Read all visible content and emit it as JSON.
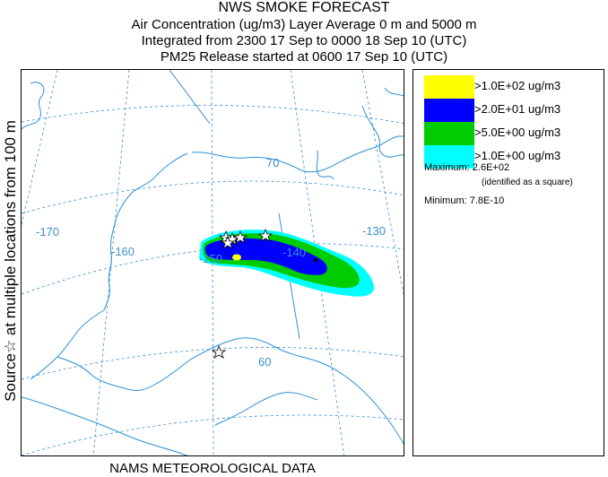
{
  "title": {
    "line1": "NWS SMOKE FORECAST",
    "line2": "Air Concentration (ug/m3) Layer Average    0 m and  5000 m",
    "line3": "Integrated from 2300 17 Sep to 0000 18 Sep 10 (UTC)",
    "line4": "PM25 Release started at 0600 17 Sep 10 (UTC)"
  },
  "side_label": "Source☆  at multiple locations    from   100 m",
  "footer": "NAMS METEOROLOGICAL DATA",
  "grid_labels": {
    "lon_170": "-170",
    "lon_160": "-160",
    "lon_150": "-150",
    "lon_140": "-140",
    "lon_130": "-130",
    "lat_70": "70",
    "lat_60": "60"
  },
  "legend": {
    "items": [
      {
        "label": ">1.0E+02 ug/m3",
        "color": "#ffff00"
      },
      {
        "label": ">2.0E+01 ug/m3",
        "color": "#0000ff"
      },
      {
        "label": ">5.0E+00 ug/m3",
        "color": "#00cc00"
      },
      {
        "label": ">1.0E+00 ug/m3",
        "color": "#00ffff"
      }
    ],
    "maximum_label": "Maximum:",
    "maximum_value": "2.6E+02",
    "maximum_note": "(identified as a square)",
    "minimum_label": "Minimum:",
    "minimum_value": "7.8E-10"
  },
  "colors": {
    "coastline": "#2a8fd8",
    "graticule": "#3a8fd0"
  }
}
